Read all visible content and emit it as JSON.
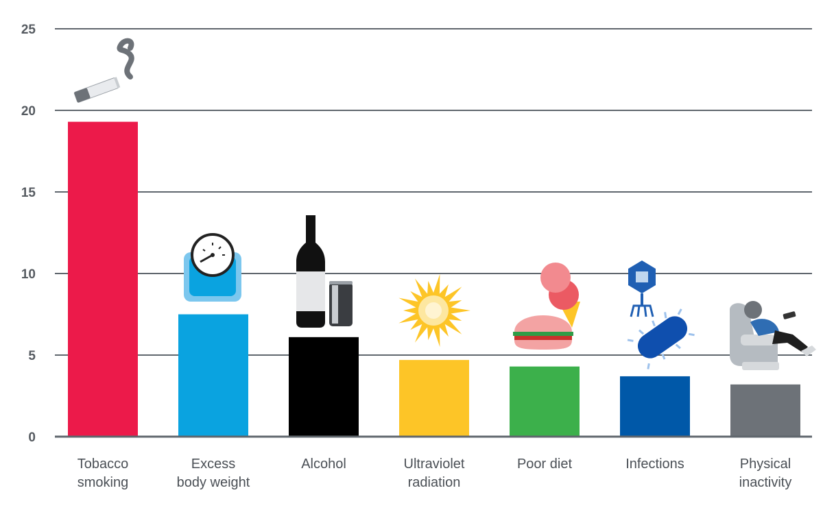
{
  "chart_data": {
    "type": "bar",
    "title": "",
    "xlabel": "",
    "ylabel": "",
    "ylim": [
      0,
      25
    ],
    "yticks": [
      0,
      5,
      10,
      15,
      20,
      25
    ],
    "grid": true,
    "categories": [
      [
        "Tobacco",
        "smoking"
      ],
      [
        "Excess",
        "body weight"
      ],
      [
        "Alcohol"
      ],
      [
        "Ultraviolet",
        "radiation"
      ],
      [
        "Poor diet"
      ],
      [
        "Infections"
      ],
      [
        "Physical",
        "inactivity"
      ]
    ],
    "values": [
      19.3,
      7.5,
      6.1,
      4.7,
      4.3,
      3.7,
      3.2
    ],
    "colors": [
      "#ec1a4a",
      "#0aa3e0",
      "#000000",
      "#fdc527",
      "#3cb04b",
      "#0058a8",
      "#6d7278"
    ],
    "icons": [
      "cigarette-icon",
      "bathroom-scale-icon",
      "wine-bottle-and-can-icon",
      "sun-icon",
      "burger-and-ice-cream-icon",
      "virus-and-bacterium-icon",
      "person-in-recliner-icon"
    ],
    "gridline_color": "#5f666d"
  }
}
